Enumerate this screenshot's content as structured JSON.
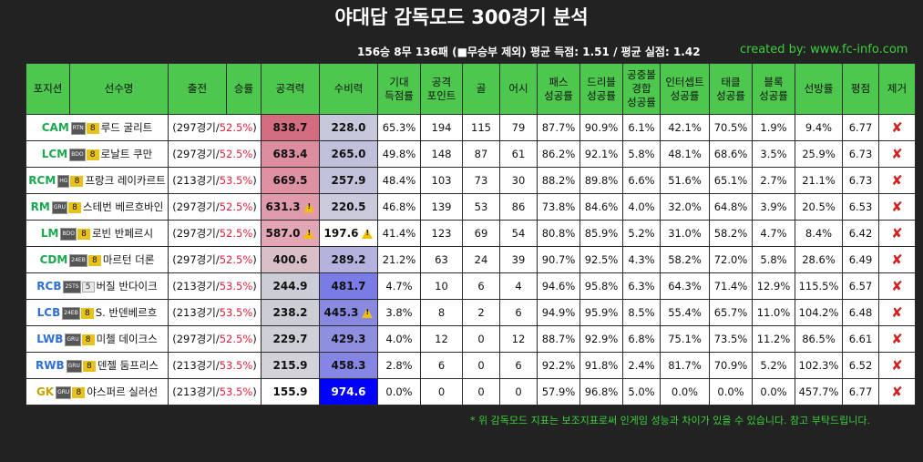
{
  "title": "야대답 감독모드 300경기 분석",
  "summary": "156승 8무 136패  (■무승부 제외)  평균 득점: 1.51 / 평균 실점: 1.42",
  "credit": "created by: www.fc-info.com",
  "headers": [
    "포지션",
    "선수명",
    "출전",
    "승률",
    "공격력",
    "수비력",
    "기대\n득점률",
    "공격\n포인트",
    "골",
    "어시",
    "패스\n성공률",
    "드리블\n성공률",
    "공중볼\n경합\n성공률",
    "인터셉트\n성공률",
    "태클\n성공률",
    "블록\n성공률",
    "선방률",
    "평점",
    "제거"
  ],
  "colors": {
    "header_bg": "#4dc74d",
    "win_rate": "#e0213a",
    "credit": "#3ccf3c",
    "remove": "#d11f1f"
  },
  "rows": [
    {
      "pos": "CAM",
      "pos_group": "FW",
      "season": "RTN",
      "lvl": "8",
      "name": "루드 굴리트",
      "games": "297경기",
      "rate": "52.5%",
      "att": "838.7",
      "att_warn": false,
      "att_bg": "#d36c7f",
      "def": "228.0",
      "def_warn": false,
      "def_bg": "#c8c8dc",
      "xg": "65.3%",
      "ap": "194",
      "goals": "115",
      "assists": "79",
      "pass": "87.7%",
      "dribble": "90.9%",
      "aerial": "6.1%",
      "intercept": "42.1%",
      "tackle": "70.5%",
      "block": "1.9%",
      "save": "9.4%",
      "rating": "6.77",
      "remove": "✘"
    },
    {
      "pos": "LCM",
      "pos_group": "MF",
      "season": "BDO",
      "lvl": "8",
      "name": "로날트 쿠만",
      "games": "297경기",
      "rate": "52.5%",
      "att": "683.4",
      "att_warn": false,
      "att_bg": "#dc8da0",
      "def": "265.0",
      "def_warn": false,
      "def_bg": "#c0c0da",
      "xg": "49.8%",
      "ap": "148",
      "goals": "87",
      "assists": "61",
      "pass": "86.2%",
      "dribble": "92.1%",
      "aerial": "5.8%",
      "intercept": "48.1%",
      "tackle": "68.6%",
      "block": "3.5%",
      "save": "25.9%",
      "rating": "6.73",
      "remove": "✘"
    },
    {
      "pos": "RCM",
      "pos_group": "MF",
      "season": "HG",
      "lvl": "8",
      "name": "프랑크 레이카르트",
      "games": "213경기",
      "rate": "53.5%",
      "att": "669.5",
      "att_warn": false,
      "att_bg": "#dd91a3",
      "def": "257.9",
      "def_warn": false,
      "def_bg": "#c2c2da",
      "xg": "48.4%",
      "ap": "103",
      "goals": "73",
      "assists": "30",
      "pass": "88.2%",
      "dribble": "89.8%",
      "aerial": "6.6%",
      "intercept": "51.6%",
      "tackle": "65.1%",
      "block": "2.7%",
      "save": "21.1%",
      "rating": "6.73",
      "remove": "✘"
    },
    {
      "pos": "RM",
      "pos_group": "MF",
      "season": "GRU",
      "lvl": "8",
      "name": "스테번 베르흐바인",
      "games": "297경기",
      "rate": "52.5%",
      "att": "631.3",
      "att_warn": true,
      "att_bg": "#df9aab",
      "def": "220.5",
      "def_warn": false,
      "def_bg": "#cacadc",
      "xg": "46.8%",
      "ap": "139",
      "goals": "53",
      "assists": "86",
      "pass": "73.8%",
      "dribble": "84.6%",
      "aerial": "4.0%",
      "intercept": "32.0%",
      "tackle": "64.8%",
      "block": "3.9%",
      "save": "20.5%",
      "rating": "6.53",
      "remove": "✘"
    },
    {
      "pos": "LM",
      "pos_group": "MF",
      "season": "BDO",
      "lvl": "8",
      "name": "로빈 반페르시",
      "games": "297경기",
      "rate": "52.5%",
      "att": "587.0",
      "att_warn": true,
      "att_bg": "#e2a6b4",
      "def": "197.6",
      "def_warn": true,
      "def_bg": "#ffffff",
      "xg": "41.4%",
      "ap": "123",
      "goals": "69",
      "assists": "54",
      "pass": "80.8%",
      "dribble": "85.9%",
      "aerial": "5.2%",
      "intercept": "31.0%",
      "tackle": "58.2%",
      "block": "4.7%",
      "save": "8.4%",
      "rating": "6.42",
      "remove": "✘"
    },
    {
      "pos": "CDM",
      "pos_group": "MF",
      "season": "24EB",
      "lvl": "8",
      "name": "마르턴 더론",
      "games": "297경기",
      "rate": "52.5%",
      "att": "400.6",
      "att_warn": false,
      "att_bg": "#d9c0c8",
      "def": "289.2",
      "def_warn": false,
      "def_bg": "#b3b3de",
      "xg": "21.2%",
      "ap": "63",
      "goals": "24",
      "assists": "39",
      "pass": "90.7%",
      "dribble": "92.5%",
      "aerial": "4.3%",
      "intercept": "58.2%",
      "tackle": "72.0%",
      "block": "5.8%",
      "save": "28.6%",
      "rating": "6.49",
      "remove": "✘"
    },
    {
      "pos": "RCB",
      "pos_group": "DF",
      "season": "25TS",
      "lvl": "5",
      "name": "버질 반다이크",
      "games": "213경기",
      "rate": "53.5%",
      "att": "244.9",
      "att_warn": false,
      "att_bg": "#ccccd6",
      "def": "481.7",
      "def_warn": false,
      "def_bg": "#7b7be6",
      "xg": "4.7%",
      "ap": "10",
      "goals": "6",
      "assists": "4",
      "pass": "94.6%",
      "dribble": "95.8%",
      "aerial": "6.3%",
      "intercept": "64.3%",
      "tackle": "71.4%",
      "block": "12.9%",
      "save": "115.5%",
      "rating": "6.57",
      "remove": "✘"
    },
    {
      "pos": "LCB",
      "pos_group": "DF",
      "season": "24EB",
      "lvl": "8",
      "name": "S. 반덴베르흐",
      "games": "213경기",
      "rate": "53.5%",
      "att": "238.2",
      "att_warn": false,
      "att_bg": "#cdcdd6",
      "def": "445.3",
      "def_warn": true,
      "def_bg": "#8989e2",
      "xg": "3.8%",
      "ap": "8",
      "goals": "2",
      "assists": "6",
      "pass": "94.9%",
      "dribble": "95.9%",
      "aerial": "8.5%",
      "intercept": "55.4%",
      "tackle": "65.7%",
      "block": "11.0%",
      "save": "104.2%",
      "rating": "6.48",
      "remove": "✘"
    },
    {
      "pos": "LWB",
      "pos_group": "DF",
      "season": "GRU",
      "lvl": "8",
      "name": "미첼 데이크스",
      "games": "297경기",
      "rate": "52.5%",
      "att": "229.7",
      "att_warn": false,
      "att_bg": "#cfcfd7",
      "def": "429.3",
      "def_warn": false,
      "def_bg": "#8f8fe0",
      "xg": "4.0%",
      "ap": "12",
      "goals": "0",
      "assists": "12",
      "pass": "88.7%",
      "dribble": "92.9%",
      "aerial": "6.8%",
      "intercept": "75.1%",
      "tackle": "73.5%",
      "block": "11.2%",
      "save": "86.5%",
      "rating": "6.61",
      "remove": "✘"
    },
    {
      "pos": "RWB",
      "pos_group": "DF",
      "season": "GRU",
      "lvl": "8",
      "name": "덴젤 둠프리스",
      "games": "213경기",
      "rate": "53.5%",
      "att": "215.9",
      "att_warn": false,
      "att_bg": "#d2d2d8",
      "def": "458.3",
      "def_warn": false,
      "def_bg": "#8585e3",
      "xg": "2.8%",
      "ap": "6",
      "goals": "0",
      "assists": "6",
      "pass": "92.2%",
      "dribble": "91.8%",
      "aerial": "2.4%",
      "intercept": "81.7%",
      "tackle": "70.9%",
      "block": "5.2%",
      "save": "102.3%",
      "rating": "6.52",
      "remove": "✘"
    },
    {
      "pos": "GK",
      "pos_group": "GK",
      "season": "GRU",
      "lvl": "8",
      "name": "야스퍼르 실러선",
      "games": "213경기",
      "rate": "53.5%",
      "att": "155.9",
      "att_warn": false,
      "att_bg": "#ffffff",
      "def": "974.6",
      "def_warn": false,
      "def_bg": "#0000ff",
      "def_color": "#ffffff",
      "xg": "0.0%",
      "ap": "0",
      "goals": "0",
      "assists": "0",
      "pass": "57.9%",
      "dribble": "96.8%",
      "aerial": "5.0%",
      "intercept": "0.0%",
      "tackle": "0.0%",
      "block": "0.0%",
      "save": "457.7%",
      "rating": "6.77",
      "remove": "✘"
    }
  ],
  "footnote": "* 위 감독모드 지표는 보조지표로써 인게임 성능과 차이가 있을 수 있습니다. 참고 부탁드립니다."
}
